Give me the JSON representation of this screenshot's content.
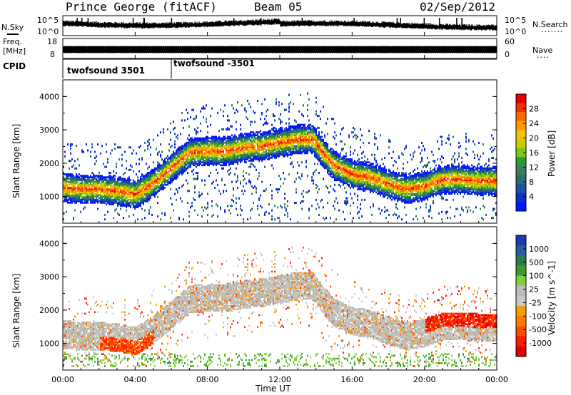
{
  "header": {
    "title": "Prince George (fitACF)",
    "beam": "Beam 05",
    "date": "02/Sep/2012"
  },
  "noise_panel": {
    "left_label": "N.Sky",
    "right_label": "N.Search",
    "left_ticks": [
      "10^5",
      "10^0"
    ],
    "right_ticks": [
      "10^5",
      "10^0"
    ]
  },
  "freq_panel": {
    "left_label_line1": "Freq.",
    "left_label_line2": "[MHz]",
    "left_ticks": [
      "18",
      "8"
    ],
    "right_ticks": [
      "60",
      "0"
    ],
    "right_label": "Nave"
  },
  "cpid": {
    "label": "CPID",
    "segments": [
      {
        "name": "twofsound 3501",
        "start_hour": 0
      },
      {
        "name": "twofsound -3501",
        "start_hour": 6
      }
    ]
  },
  "x_axis": {
    "label": "Time UT",
    "ticks": [
      "00:00",
      "04:00",
      "08:00",
      "12:00",
      "16:00",
      "20:00",
      "00:00"
    ]
  },
  "power_colorbar": {
    "label": "Power [dB]",
    "ticks": [
      "28",
      "24",
      "20",
      "16",
      "12",
      "8",
      "4"
    ],
    "colors": [
      "#e80000",
      "#f23000",
      "#ff6a00",
      "#ff9800",
      "#f7c300",
      "#c8cf00",
      "#7fc41b",
      "#2e9a2e",
      "#3d7d5b",
      "#286e6e",
      "#1f4fa0",
      "#1030c8",
      "#0018ff"
    ]
  },
  "velocity_colorbar": {
    "label": "Velocity [m s^-1]",
    "ticks": [
      "1000",
      "500",
      "100",
      "25",
      "-25",
      "-100",
      "-500",
      "-1000"
    ],
    "colors": [
      "#1e3aa8",
      "#2a5aa0",
      "#2e7a4a",
      "#3e9a2e",
      "#7fd040",
      "#bcbcbc",
      "#c8c8c8",
      "#f0a000",
      "#ff7a00",
      "#ff4a00",
      "#ff1a00",
      "#e00000"
    ]
  },
  "chart_data": {
    "type": "heatmap",
    "title": "Prince George (fitACF)",
    "xlabel": "Time UT",
    "ylabel": "Slant Range [km]",
    "xlim": [
      0,
      24
    ],
    "ylim": [
      200,
      4500
    ],
    "y_ticks": [
      1000,
      2000,
      3000,
      4000
    ],
    "panels": [
      {
        "name": "Power",
        "quantity": "Power [dB]",
        "color_range": [
          0,
          30
        ]
      },
      {
        "name": "Velocity",
        "quantity": "Velocity [m s^-1]",
        "color_range": [
          -1000,
          1000
        ]
      }
    ],
    "main_band_center_km": {
      "hours": [
        0,
        1,
        2,
        3,
        4,
        5,
        6,
        7,
        8,
        9,
        10,
        11,
        12,
        13,
        13.8,
        14.5,
        15,
        16,
        17,
        18,
        19,
        20,
        21,
        22,
        23,
        24
      ],
      "range": [
        1250,
        1200,
        1200,
        1150,
        1050,
        1400,
        1850,
        2300,
        2350,
        2350,
        2450,
        2500,
        2600,
        2700,
        2700,
        2200,
        1900,
        1650,
        1550,
        1350,
        1200,
        1300,
        1500,
        1500,
        1450,
        1450
      ]
    }
  }
}
